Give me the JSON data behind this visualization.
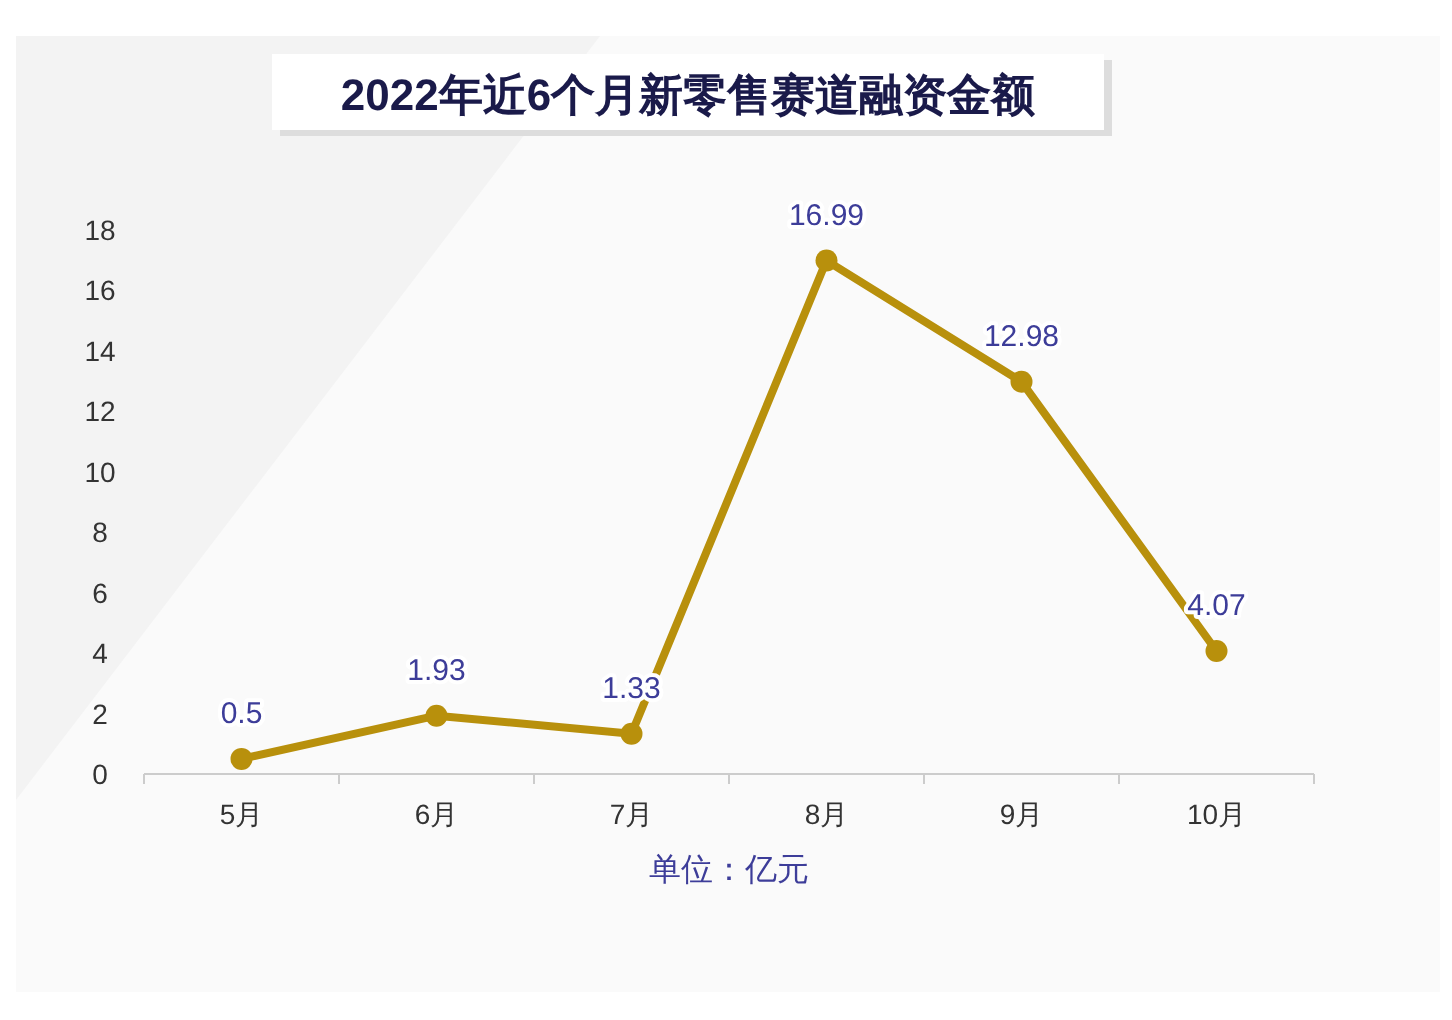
{
  "chart_data": {
    "type": "line",
    "title": "2022年近6个月新零售赛道融资金额",
    "xlabel": "单位：亿元",
    "categories": [
      "5月",
      "6月",
      "7月",
      "8月",
      "9月",
      "10月"
    ],
    "series": [
      {
        "color": "#b8900c",
        "values": [
          0.5,
          1.93,
          1.33,
          16.99,
          12.98,
          4.07
        ]
      }
    ],
    "ylim": [
      0,
      18
    ],
    "yticks": [
      0,
      2,
      4,
      6,
      8,
      10,
      12,
      14,
      16,
      18
    ],
    "data_labels": true,
    "marker": "circle",
    "line_style": "solid"
  }
}
